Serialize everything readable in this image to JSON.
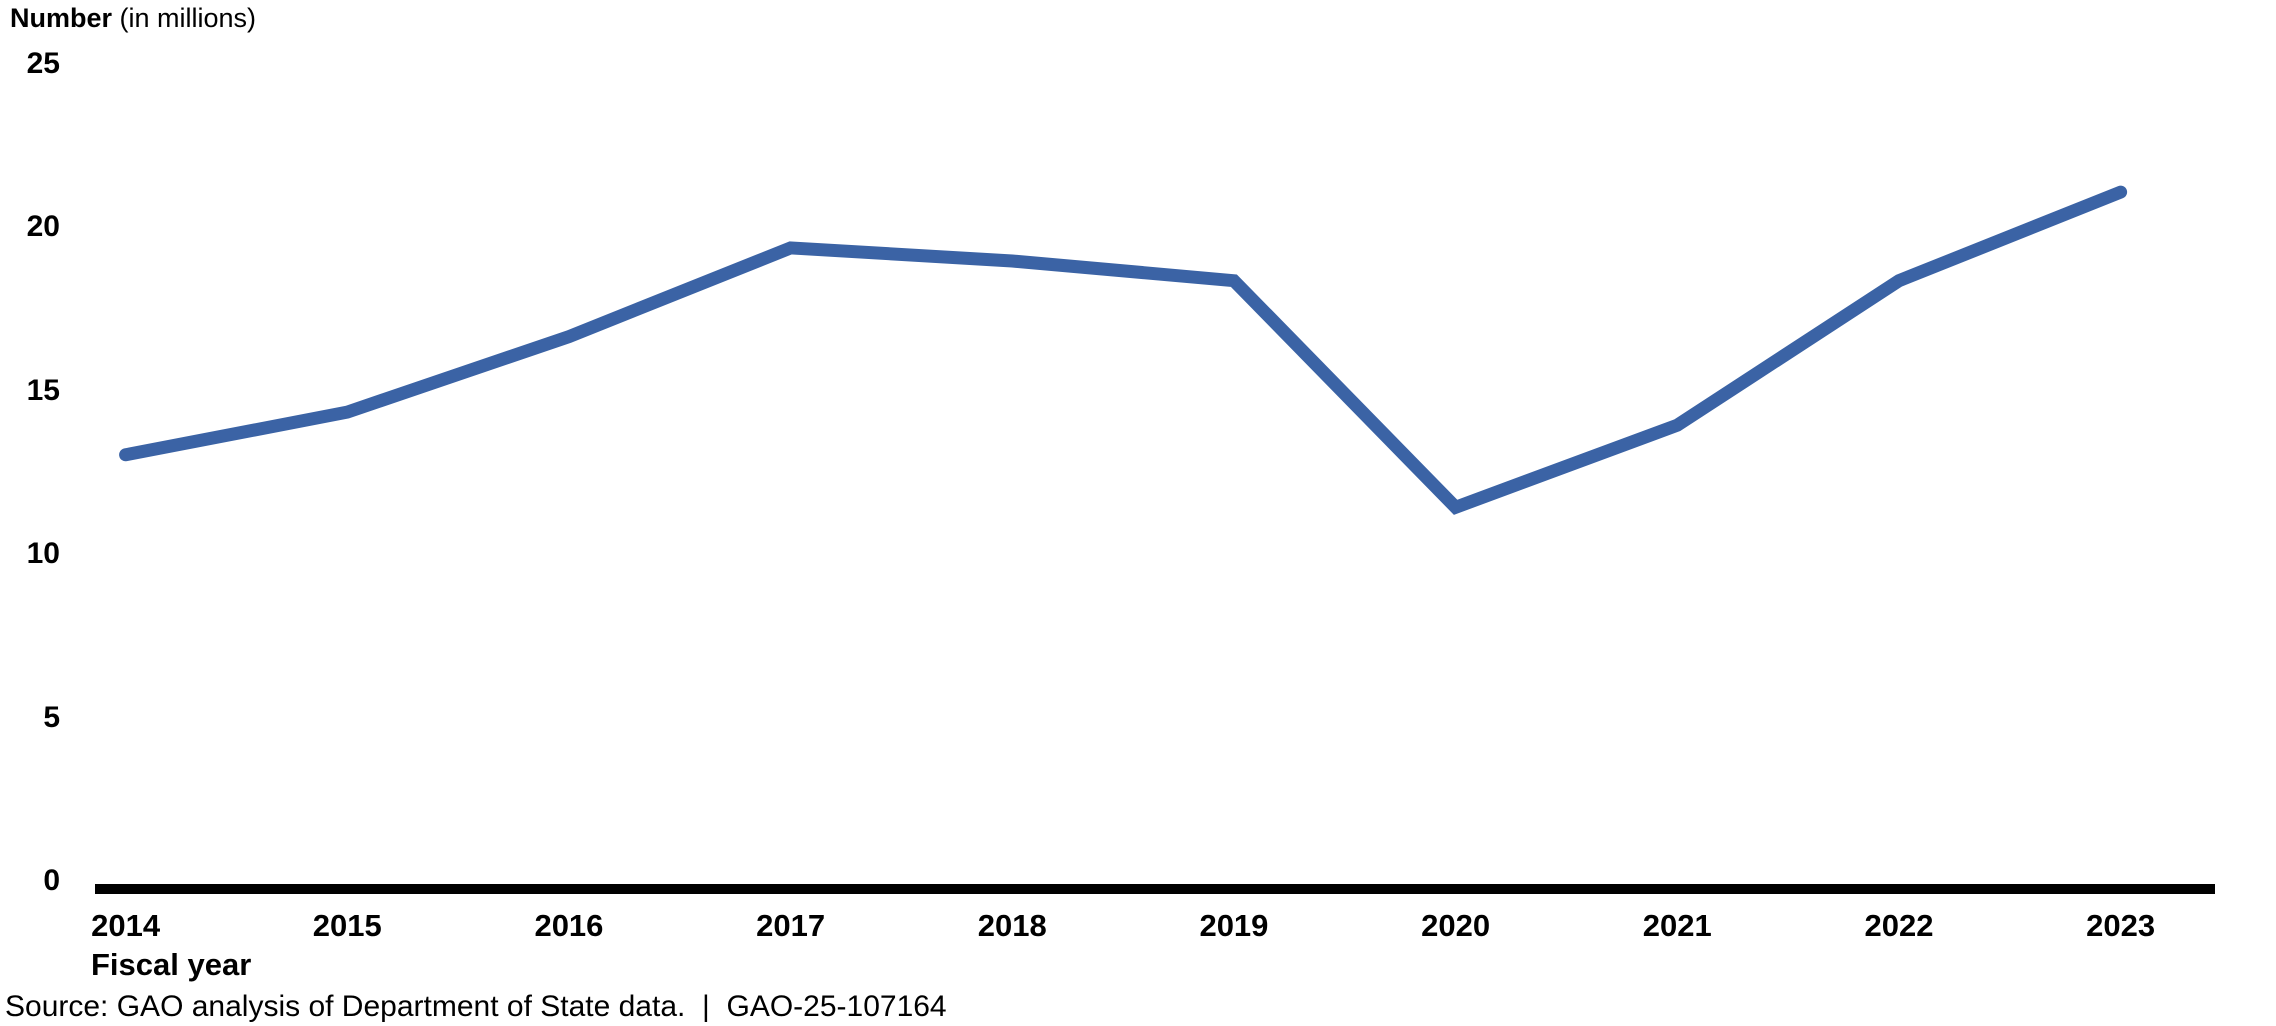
{
  "chart_data": {
    "type": "line",
    "title": "Number",
    "title_units": "(in millions)",
    "xlabel": "Fiscal year",
    "categories": [
      "2014",
      "2015",
      "2016",
      "2017",
      "2018",
      "2019",
      "2020",
      "2021",
      "2022",
      "2023"
    ],
    "values": [
      13.1,
      14.4,
      16.7,
      19.4,
      19.0,
      18.4,
      11.5,
      14.0,
      18.4,
      21.1
    ],
    "ylim": [
      0,
      25
    ],
    "yticks": [
      0,
      5,
      10,
      15,
      20,
      25
    ],
    "grid": false,
    "legend": "none",
    "line_color": "#3B63A5",
    "axis_color": "#000000",
    "text_color": "#000000",
    "source_note": "Source: GAO analysis of Department of State data.  |  GAO-25-107164"
  }
}
